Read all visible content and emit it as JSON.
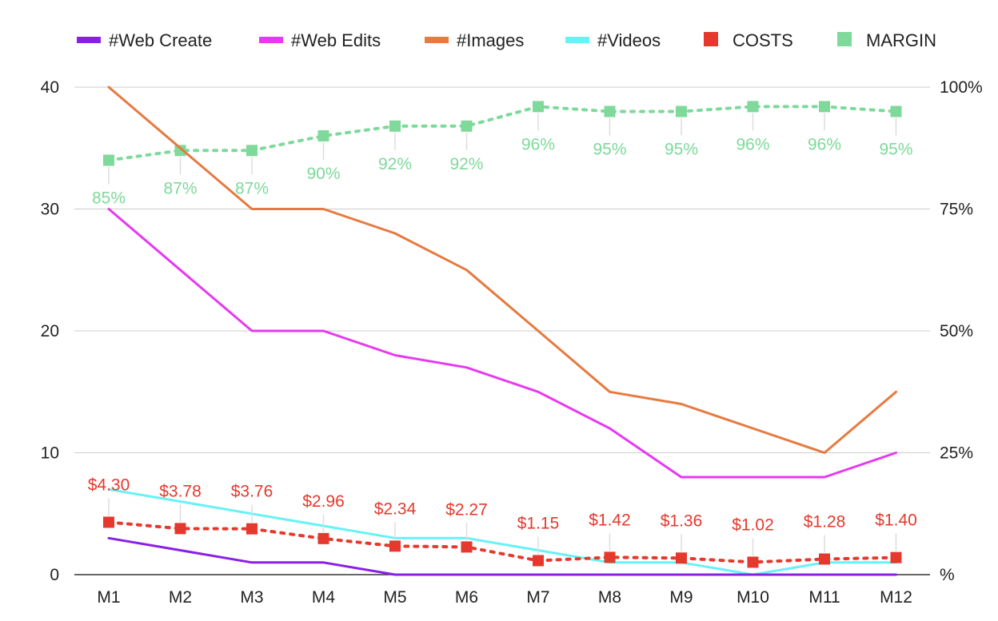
{
  "chart_data": {
    "type": "line",
    "title": "",
    "xlabel": "",
    "ylabel": "",
    "categories": [
      "M1",
      "M2",
      "M3",
      "M4",
      "M5",
      "M6",
      "M7",
      "M8",
      "M9",
      "M10",
      "M11",
      "M12"
    ],
    "y_left": {
      "range": [
        0,
        40
      ],
      "ticks": [
        0,
        10,
        20,
        30,
        40
      ],
      "tick_labels": [
        "0",
        "10",
        "20",
        "30",
        "40"
      ]
    },
    "y_right": {
      "range": [
        0,
        100
      ],
      "ticks": [
        0,
        25,
        50,
        75,
        100
      ],
      "tick_labels": [
        "%",
        "25%",
        "50%",
        "75%",
        "100%"
      ]
    },
    "grid": true,
    "legend": "top",
    "series": [
      {
        "name": "#Web Create",
        "axis": "left",
        "style": "line",
        "color": "#8a1fe6",
        "values": [
          3,
          2,
          1,
          1,
          0,
          0,
          0,
          0,
          0,
          0,
          0,
          0
        ]
      },
      {
        "name": "#Web Edits",
        "axis": "left",
        "style": "line",
        "color": "#e639f0",
        "values": [
          30,
          25,
          20,
          20,
          18,
          17,
          15,
          12,
          8,
          8,
          8,
          10
        ]
      },
      {
        "name": "#Images",
        "axis": "left",
        "style": "line",
        "color": "#e67a40",
        "values": [
          40,
          35,
          30,
          30,
          28,
          25,
          20,
          15,
          14,
          12,
          10,
          15
        ]
      },
      {
        "name": "#Videos",
        "axis": "left",
        "style": "line",
        "color": "#66f2f7",
        "values": [
          7,
          6,
          5,
          4,
          3,
          3,
          2,
          1,
          1,
          0,
          1,
          1
        ]
      },
      {
        "name": "COSTS",
        "axis": "left",
        "style": "dotted-markers",
        "color": "#e6392e",
        "values": [
          4.3,
          3.78,
          3.76,
          2.96,
          2.34,
          2.27,
          1.15,
          1.42,
          1.36,
          1.02,
          1.28,
          1.4
        ],
        "labels": [
          "$4.30",
          "$3.78",
          "$3.76",
          "$2.96",
          "$2.34",
          "$2.27",
          "$1.15",
          "$1.42",
          "$1.36",
          "$1.02",
          "$1.28",
          "$1.40"
        ],
        "label_position": [
          "above",
          "above",
          "above",
          "above",
          "above",
          "above",
          "above",
          "above",
          "above",
          "above",
          "above",
          "above"
        ]
      },
      {
        "name": "MARGIN",
        "axis": "right",
        "style": "dotted-markers",
        "color": "#7ed99a",
        "values": [
          85,
          87,
          87,
          90,
          92,
          92,
          96,
          95,
          95,
          96,
          96,
          95
        ],
        "labels": [
          "85%",
          "87%",
          "87%",
          "90%",
          "92%",
          "92%",
          "96%",
          "95%",
          "95%",
          "96%",
          "96%",
          "95%"
        ],
        "label_position": [
          "below",
          "below",
          "below",
          "below",
          "below",
          "below",
          "below",
          "below",
          "below",
          "below",
          "below",
          "below"
        ]
      }
    ]
  }
}
